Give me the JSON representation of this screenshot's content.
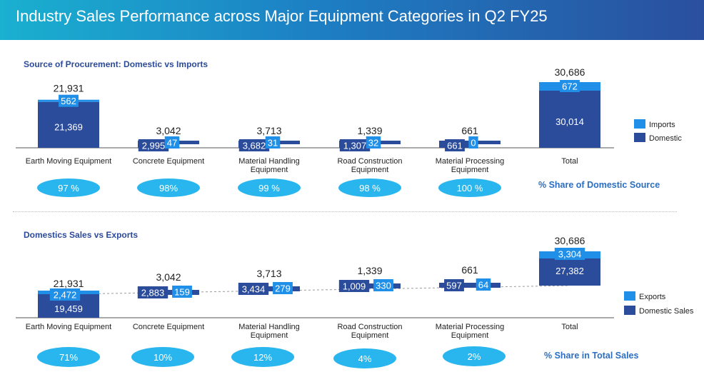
{
  "header": {
    "title": "Industry Sales Performance across Major Equipment Categories in Q2 FY25"
  },
  "colors": {
    "light": "#1f8fe8",
    "dark": "#2b4c9b",
    "oval": "#29b6ee",
    "banner_start": "#1ab0d0",
    "banner_end": "#2a4f9e"
  },
  "chart_data": [
    {
      "type": "bar",
      "title": "Source of Procurement: Domestic vs Imports",
      "categories": [
        "Earth Moving Equipment",
        "Concrete Equipment",
        "Material Handling Equipment",
        "Road Construction Equipment",
        "Material Processing Equipment",
        "Total"
      ],
      "category_labels": [
        [
          "Earth Moving Equipment"
        ],
        [
          "Concrete Equipment"
        ],
        [
          "Material Handling",
          "Equipment"
        ],
        [
          "Road Construction",
          "Equipment"
        ],
        [
          "Material Processing",
          "Equipment"
        ],
        [
          "Total"
        ]
      ],
      "series": [
        {
          "name": "Domestic",
          "values": [
            21369,
            2995,
            3682,
            1307,
            661,
            30014
          ]
        },
        {
          "name": "Imports",
          "values": [
            562,
            47,
            31,
            32,
            0,
            672
          ]
        }
      ],
      "totals": [
        21931,
        3042,
        3713,
        1339,
        661,
        30686
      ],
      "value_labels": {
        "totals": [
          "21,931",
          "3,042",
          "3,713",
          "1,339",
          "661",
          "30,686"
        ],
        "domestic": [
          "21,369",
          "2,995",
          "3,682",
          "1,307",
          "661",
          "30,014"
        ],
        "imports": [
          "562",
          "47",
          "31",
          "32",
          "0",
          "672"
        ]
      },
      "share_label": "% Share of Domestic Source",
      "shares": [
        "97 %",
        "98%",
        "99 %",
        "98 %",
        "100 %"
      ],
      "legend": [
        "Imports",
        "Domestic"
      ],
      "legend_position": "right"
    },
    {
      "type": "bar",
      "title": "Domestics Sales vs Exports",
      "categories": [
        "Earth Moving Equipment",
        "Concrete Equipment",
        "Material Handling Equipment",
        "Road Construction Equipment",
        "Material Processing Equipment",
        "Total"
      ],
      "category_labels": [
        [
          "Earth Moving Equipment"
        ],
        [
          "Concrete Equipment"
        ],
        [
          "Material Handling",
          "Equipment"
        ],
        [
          "Road Construction",
          "Equipment"
        ],
        [
          "Material Processing",
          "Equipment"
        ],
        [
          "Total"
        ]
      ],
      "series": [
        {
          "name": "Domestic Sales",
          "values": [
            19459,
            2883,
            3434,
            1009,
            597,
            27382
          ]
        },
        {
          "name": "Exports",
          "values": [
            2472,
            159,
            279,
            330,
            64,
            3304
          ]
        }
      ],
      "totals": [
        21931,
        3042,
        3713,
        1339,
        661,
        30686
      ],
      "value_labels": {
        "totals": [
          "21,931",
          "3,042",
          "3,713",
          "1,339",
          "661",
          "30,686"
        ],
        "domestic": [
          "19,459",
          "2,883",
          "3,434",
          "1,009",
          "597",
          "27,382"
        ],
        "exports": [
          "2,472",
          "159",
          "279",
          "330",
          "64",
          "3,304"
        ]
      },
      "share_label": "% Share in Total Sales",
      "shares": [
        "71%",
        "10%",
        "12%",
        "4%",
        "2%"
      ],
      "legend": [
        "Exports",
        "Domestic Sales"
      ],
      "legend_position": "right"
    }
  ]
}
